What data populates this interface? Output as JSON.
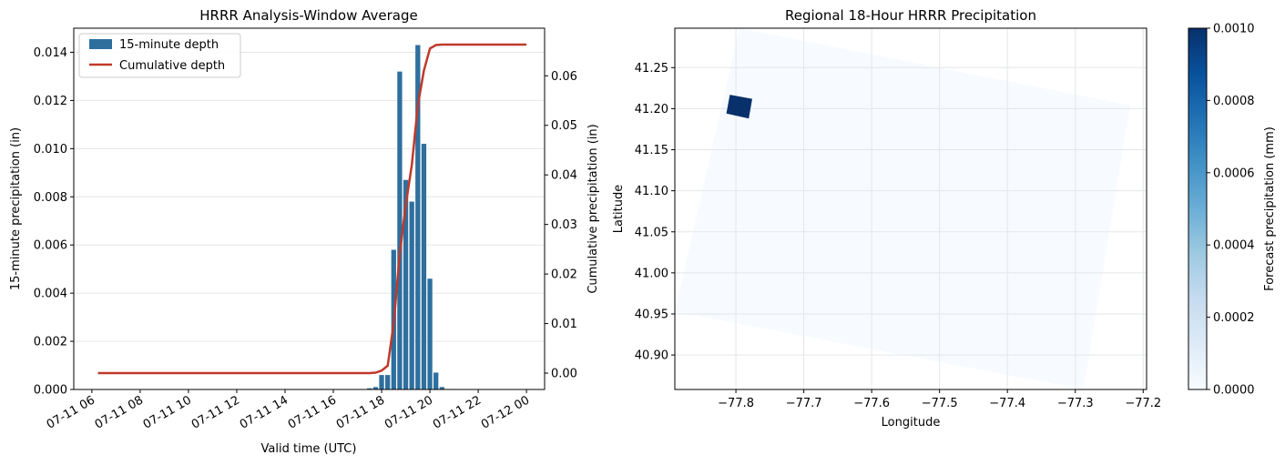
{
  "chart_data": [
    {
      "type": "bar",
      "title": "HRRR Analysis-Window Average",
      "xlabel": "Valid time (UTC)",
      "ylabel": "15-minute precipitation (in)",
      "y2label": "Cumulative precipitation (in)",
      "xlim": [
        "2024-07-11T05:15",
        "2024-07-12T00:45"
      ],
      "ylim": [
        0,
        0.015
      ],
      "y2lim": [
        -0.0033,
        0.0696
      ],
      "x_ticks": [
        "07-11 06",
        "07-11 08",
        "07-11 10",
        "07-11 12",
        "07-11 14",
        "07-11 16",
        "07-11 18",
        "07-11 20",
        "07-11 22",
        "07-12 00"
      ],
      "y_ticks": [
        "0.000",
        "0.002",
        "0.004",
        "0.006",
        "0.008",
        "0.010",
        "0.012",
        "0.014"
      ],
      "y2_ticks": [
        "0.00",
        "0.01",
        "0.02",
        "0.03",
        "0.04",
        "0.05",
        "0.06"
      ],
      "grid": "y",
      "legend": "top-left",
      "colors": {
        "bars": "#2e6f9e",
        "line": "#c0392b"
      },
      "series": [
        {
          "name": "15-minute depth",
          "type": "bar",
          "x": [
            "17:30",
            "17:45",
            "18:00",
            "18:15",
            "18:30",
            "18:45",
            "19:00",
            "19:15",
            "19:30",
            "19:45",
            "20:00",
            "20:15",
            "20:30",
            "20:45",
            "21:00"
          ],
          "values": [
            5e-05,
            0.0001,
            0.0006,
            0.0006,
            0.0058,
            0.0132,
            0.0087,
            0.0078,
            0.0143,
            0.0102,
            0.0046,
            0.0007,
            0.0001,
            2e-05,
            1e-05
          ]
        },
        {
          "name": "Cumulative depth",
          "type": "line",
          "x": [
            "06:15",
            "17:30",
            "17:45",
            "18:00",
            "18:15",
            "18:30",
            "18:45",
            "19:00",
            "19:15",
            "19:30",
            "19:45",
            "20:00",
            "20:15",
            "20:30",
            "20:45",
            "21:00",
            "00:00"
          ],
          "values": [
            0.0,
            0.0,
            0.0001,
            0.0005,
            0.0015,
            0.01,
            0.024,
            0.034,
            0.042,
            0.054,
            0.061,
            0.0655,
            0.0662,
            0.0663,
            0.0663,
            0.0663,
            0.0663
          ]
        }
      ]
    },
    {
      "type": "heatmap",
      "title": "Regional 18-Hour HRRR Precipitation",
      "xlabel": "Longitude",
      "ylabel": "Latitude",
      "colorbar_label": "Forecast precipitation (mm)",
      "xlim": [
        -77.89,
        -77.195
      ],
      "ylim": [
        40.858,
        41.298
      ],
      "x_ticks": [
        "−77.8",
        "−77.7",
        "−77.6",
        "−77.5",
        "−77.4",
        "−77.3",
        "−77.2"
      ],
      "y_ticks": [
        "40.90",
        "40.95",
        "41.00",
        "41.05",
        "41.10",
        "41.15",
        "41.20",
        "41.25"
      ],
      "colorbar_ticks": [
        "0.0000",
        "0.0002",
        "0.0004",
        "0.0006",
        "0.0008",
        "0.0010"
      ],
      "colorbar_range": [
        0,
        0.001
      ],
      "colormap": "Blues",
      "grid": "on",
      "domain_corners": [
        [
          -77.795,
          41.298
        ],
        [
          -77.219,
          41.204
        ],
        [
          -77.288,
          40.858
        ],
        [
          -77.89,
          40.953
        ]
      ],
      "hotspot_corners": [
        [
          -77.809,
          41.217
        ],
        [
          -77.776,
          41.212
        ],
        [
          -77.781,
          41.188
        ],
        [
          -77.814,
          41.194
        ]
      ],
      "domain_value": 0.0,
      "hotspot_value": 0.001,
      "colors": {
        "domain": "#f7fbff",
        "hotspot": "#08306b"
      }
    }
  ]
}
